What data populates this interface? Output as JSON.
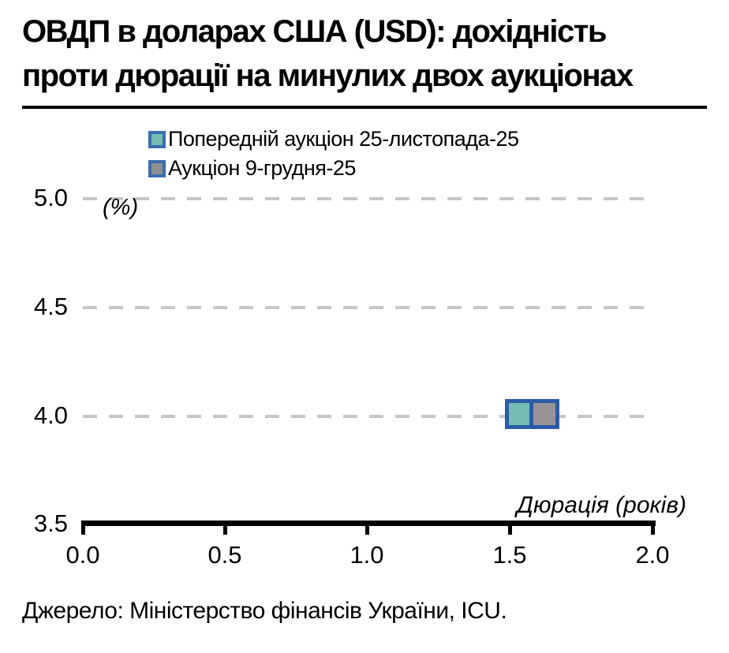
{
  "header": {
    "title_lines": [
      "ОВДП в доларах США (USD): дохідність",
      "проти дюрації на минулих двох аукціонах"
    ]
  },
  "legend": {
    "items": [
      {
        "label": "Попередній аукціон 25-листопада-25",
        "fill": "#74bdb3",
        "border": "#3a6dad"
      },
      {
        "label": "Аукціон 9-грудня-25",
        "fill": "#8f8f8f",
        "border": "#3a6dad"
      }
    ]
  },
  "axes": {
    "y_unit_label": "(%)",
    "x_axis_label": "Дюрація (років)",
    "ytick_labels": [
      "5.0",
      "4.5",
      "4.0",
      "3.5"
    ],
    "xtick_labels": [
      "0.0",
      "0.5",
      "1.0",
      "1.5",
      "2.0"
    ]
  },
  "source": {
    "text": "Джерело: Міністерство фінансів України, ICU."
  },
  "chart_data": {
    "type": "scatter",
    "title": "ОВДП в доларах США (USD): дохідність проти дюрації на минулих двох аукціонах",
    "xlabel": "Дюрація (років)",
    "ylabel": "(%)",
    "xlim": [
      0.0,
      2.0
    ],
    "ylim": [
      3.5,
      5.0
    ],
    "xticks": [
      0.0,
      0.5,
      1.0,
      1.5,
      2.0
    ],
    "yticks": [
      3.5,
      4.0,
      4.5,
      5.0
    ],
    "grid": "horizontal-dashed",
    "legend_position": "top-center",
    "marker_shape": "square",
    "series": [
      {
        "name": "Попередній аукціон 25-листопада-25",
        "fill": "#74bcb4",
        "stroke": "#2b5ba7",
        "points": [
          {
            "x": 1.53,
            "y": 4.02
          }
        ]
      },
      {
        "name": "Аукціон 9-грудня-25",
        "fill": "#989495",
        "stroke": "#2b5ba7",
        "points": [
          {
            "x": 1.62,
            "y": 4.02
          }
        ]
      }
    ],
    "colors": {
      "grid": "#c6c6c6",
      "axis": "#000000",
      "title": "#000000"
    }
  }
}
